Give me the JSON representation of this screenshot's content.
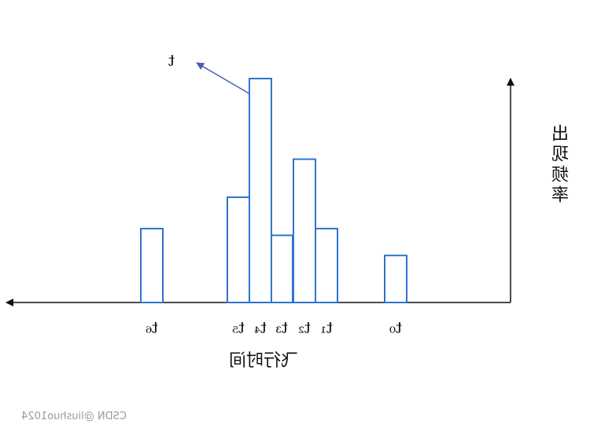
{
  "chart_data": {
    "type": "bar",
    "categories": [
      "t₀",
      "t₁",
      "t₂",
      "t₃",
      "t₄",
      "t₅",
      "t₆"
    ],
    "values": [
      21,
      33,
      64,
      30,
      100,
      47,
      33
    ],
    "color": "#2f74d0",
    "ylim": [
      0,
      100
    ],
    "x_label": "飞行时间",
    "y_label": "出现频率",
    "annotation": "t",
    "watermark": "CSDN @liushuo1024",
    "mirrored": true
  }
}
